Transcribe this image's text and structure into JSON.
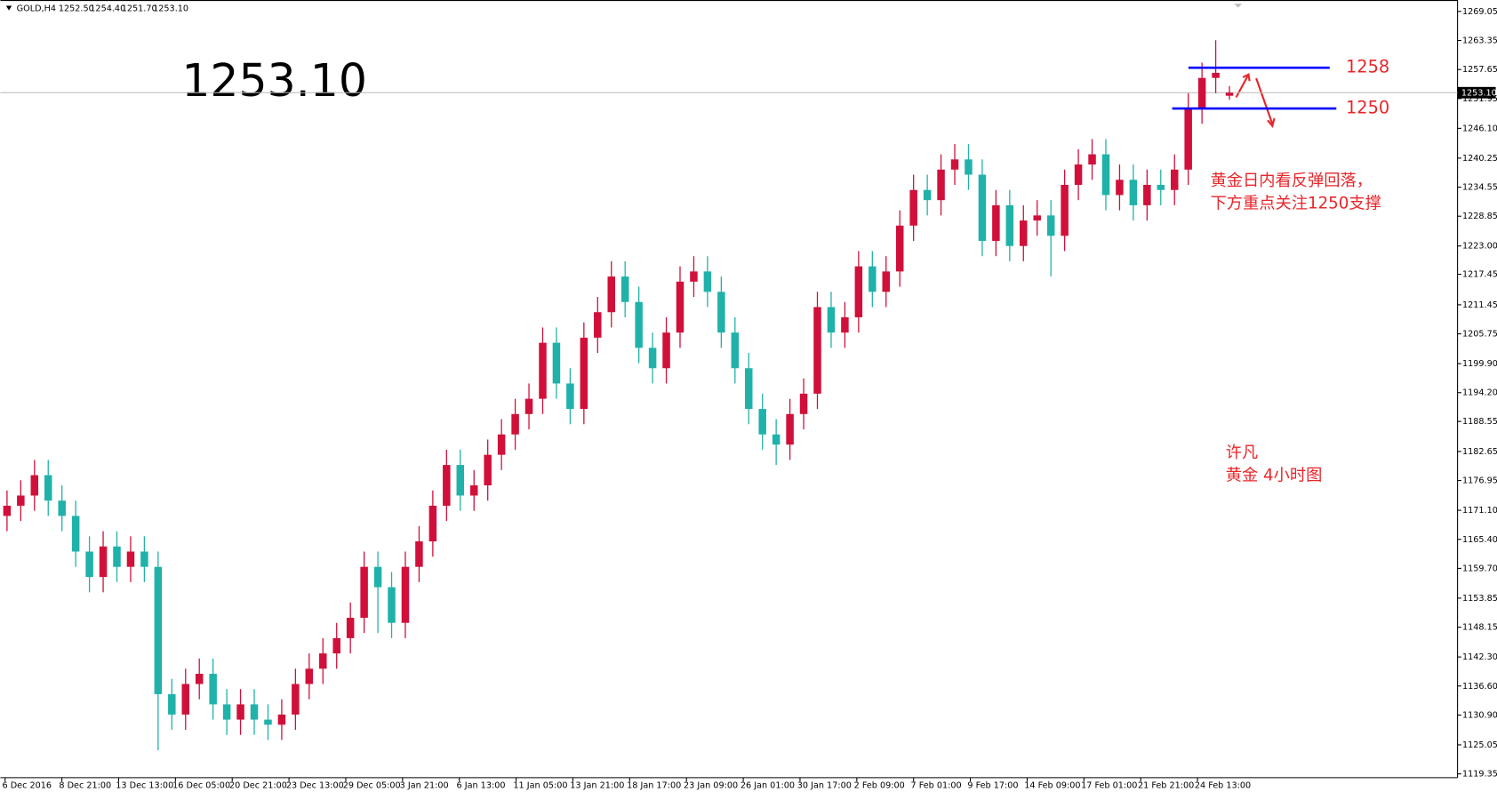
{
  "chart_data": {
    "type": "candlestick",
    "symbol": "GOLD,H4",
    "header_ohlc": [
      "1252.50",
      "1254.40",
      "1251.70",
      "1253.10"
    ],
    "open": [
      1170,
      1172,
      1174,
      1178,
      1173,
      1170,
      1163,
      1158,
      1164,
      1160,
      1163,
      1160,
      1135,
      1131,
      1137,
      1139,
      1133,
      1130,
      1133,
      1130,
      1129,
      1131,
      1137,
      1140,
      1143,
      1146,
      1150,
      1160,
      1156,
      1149,
      1160,
      1165,
      1172,
      1180,
      1174,
      1176,
      1182,
      1186,
      1190,
      1193,
      1204,
      1196,
      1191,
      1205,
      1210,
      1217,
      1212,
      1203,
      1199,
      1206,
      1216,
      1218,
      1214,
      1206,
      1199,
      1191,
      1186,
      1184,
      1190,
      1194,
      1211,
      1206,
      1209,
      1219,
      1214,
      1218,
      1227,
      1234,
      1232,
      1238,
      1240,
      1237,
      1224,
      1231,
      1223,
      1228,
      1229,
      1225,
      1235,
      1239,
      1241,
      1233,
      1236,
      1231,
      1235,
      1234,
      1238,
      1250,
      1256,
      1252.5
    ],
    "high": [
      1175,
      1177,
      1181,
      1181,
      1176,
      1173,
      1166,
      1167,
      1167,
      1166,
      1166,
      1163,
      1138,
      1140,
      1142,
      1142,
      1136,
      1136,
      1136,
      1133,
      1134,
      1140,
      1143,
      1146,
      1149,
      1153,
      1163,
      1163,
      1159,
      1163,
      1168,
      1175,
      1183,
      1183,
      1179,
      1185,
      1189,
      1193,
      1196,
      1207,
      1207,
      1199,
      1208,
      1213,
      1220,
      1220,
      1215,
      1206,
      1209,
      1219,
      1221,
      1221,
      1217,
      1209,
      1202,
      1194,
      1189,
      1193,
      1197,
      1214,
      1214,
      1212,
      1222,
      1222,
      1221,
      1230,
      1237,
      1237,
      1241,
      1243,
      1243,
      1240,
      1234,
      1234,
      1231,
      1232,
      1232,
      1238,
      1242,
      1244,
      1244,
      1239,
      1239,
      1238,
      1238,
      1241,
      1253,
      1259,
      1263.4,
      1254.4
    ],
    "low": [
      1167,
      1169,
      1171,
      1170,
      1167,
      1160,
      1155,
      1155,
      1157,
      1157,
      1157,
      1124,
      1128,
      1128,
      1134,
      1130,
      1127,
      1127,
      1127,
      1126,
      1126,
      1128,
      1134,
      1137,
      1140,
      1143,
      1147,
      1147,
      1146,
      1146,
      1157,
      1162,
      1169,
      1171,
      1171,
      1173,
      1179,
      1183,
      1187,
      1190,
      1193,
      1188,
      1188,
      1202,
      1207,
      1209,
      1200,
      1196,
      1196,
      1203,
      1213,
      1211,
      1203,
      1196,
      1188,
      1183,
      1180,
      1181,
      1187,
      1191,
      1203,
      1203,
      1206,
      1211,
      1211,
      1215,
      1224,
      1229,
      1229,
      1235,
      1234,
      1221,
      1221,
      1220,
      1220,
      1225,
      1217,
      1222,
      1232,
      1236,
      1230,
      1230,
      1228,
      1228,
      1231,
      1231,
      1235,
      1247,
      1253,
      1251.7
    ],
    "close": [
      1172,
      1174,
      1178,
      1173,
      1170,
      1163,
      1158,
      1164,
      1160,
      1163,
      1160,
      1135,
      1131,
      1137,
      1139,
      1133,
      1130,
      1133,
      1130,
      1129,
      1131,
      1137,
      1140,
      1143,
      1146,
      1150,
      1160,
      1156,
      1149,
      1160,
      1165,
      1172,
      1180,
      1174,
      1176,
      1182,
      1186,
      1190,
      1193,
      1204,
      1196,
      1191,
      1205,
      1210,
      1217,
      1212,
      1203,
      1199,
      1206,
      1216,
      1218,
      1214,
      1206,
      1199,
      1191,
      1186,
      1184,
      1190,
      1194,
      1211,
      1206,
      1209,
      1219,
      1214,
      1218,
      1227,
      1234,
      1232,
      1238,
      1240,
      1237,
      1224,
      1231,
      1223,
      1228,
      1229,
      1225,
      1235,
      1239,
      1241,
      1233,
      1236,
      1231,
      1235,
      1234,
      1238,
      1250,
      1256,
      1257,
      1253.1
    ],
    "up_color": "#d0103a",
    "down_color": "#20b2aa",
    "x_labels": [
      "6 Dec 2016",
      "8 Dec 21:00",
      "13 Dec 13:00",
      "16 Dec 05:00",
      "20 Dec 21:00",
      "23 Dec 13:00",
      "29 Dec 05:00",
      "3 Jan 21:00",
      "6 Jan 13:00",
      "11 Jan 05:00",
      "13 Jan 21:00",
      "18 Jan 17:00",
      "23 Jan 09:00",
      "26 Jan 01:00",
      "30 Jan 17:00",
      "2 Feb 09:00",
      "7 Feb 01:00",
      "9 Feb 17:00",
      "14 Feb 09:00",
      "17 Feb 01:00",
      "21 Feb 21:00",
      "24 Feb 13:00"
    ],
    "ylim": [
      1119.35,
      1269.05
    ],
    "yticks": [
      1119.35,
      1125.05,
      1130.9,
      1136.6,
      1142.3,
      1148.15,
      1153.85,
      1159.7,
      1165.4,
      1171.1,
      1176.95,
      1182.65,
      1188.55,
      1194.2,
      1199.9,
      1205.75,
      1211.45,
      1217.45,
      1223,
      1228.85,
      1234.55,
      1240.25,
      1246.1,
      1251.95,
      1257.65,
      1263.35,
      1269.05
    ],
    "ytick_labels": [
      "1119.35",
      "1125.05",
      "1130.90",
      "1136.60",
      "1142.30",
      "1148.15",
      "1153.85",
      "1159.70",
      "1165.40",
      "1171.10",
      "1176.95",
      "1182.65",
      "1188.55",
      "1194.20",
      "1199.90",
      "1205.75",
      "1211.45",
      "1217.45",
      "1223.00",
      "1228.85",
      "1234.55",
      "1240.25",
      "1246.10",
      "1251.95",
      "1257.65",
      "1263.35",
      "1269.05"
    ],
    "grid": false,
    "price_line": {
      "value": 1253.1,
      "label": "1253.10"
    },
    "levels": [
      {
        "value": 1258,
        "color": "#0000ff"
      },
      {
        "value": 1250,
        "color": "#0000ff"
      }
    ],
    "notes": [
      "黄金日内看反弹回落，",
      "下方重点关注1250支撑",
      "许凡",
      "黄金 4小时图"
    ]
  }
}
